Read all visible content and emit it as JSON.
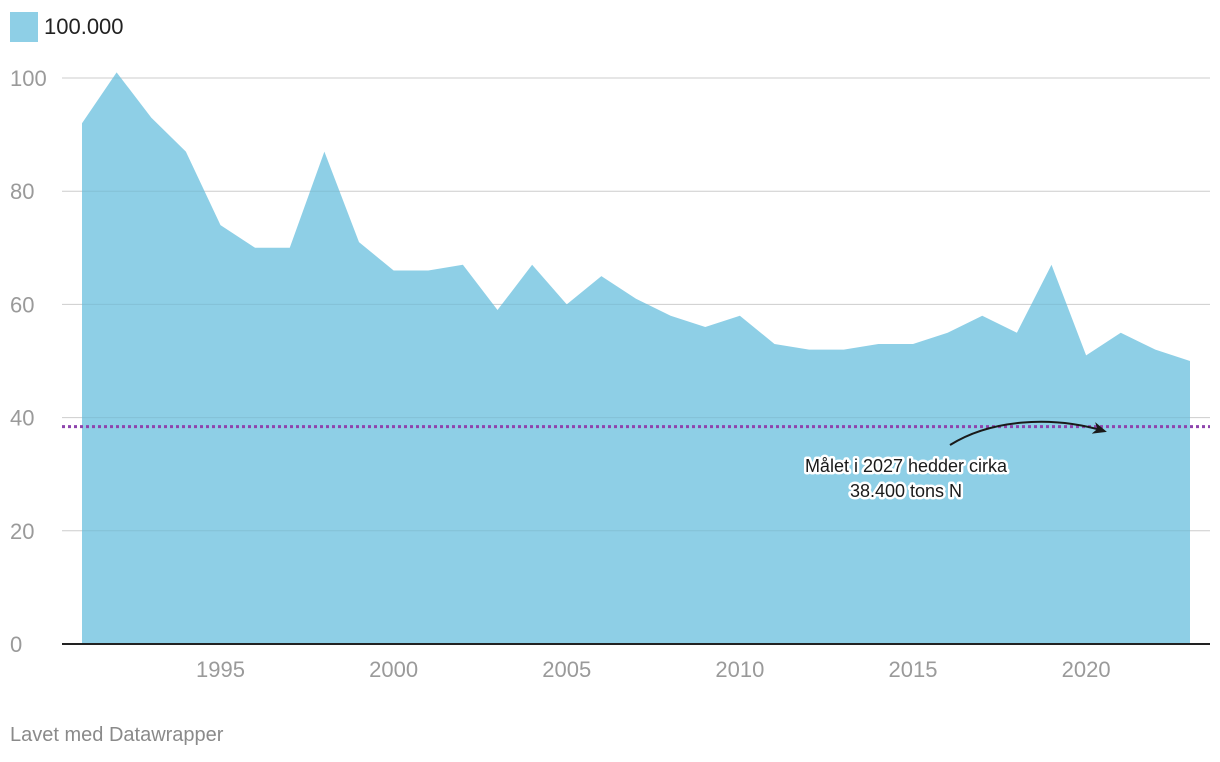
{
  "legend": {
    "label": "100.000",
    "color": "#8ecfe6"
  },
  "footer": "Lavet med Datawrapper",
  "colors": {
    "area": "#8ecfe6",
    "target_line": "#8e44ad",
    "grid": "#dddddd",
    "axis": "#222222",
    "tick_text": "#9a9a9a"
  },
  "chart_data": {
    "type": "area",
    "x": [
      1991,
      1992,
      1993,
      1994,
      1995,
      1996,
      1997,
      1998,
      1999,
      2000,
      2001,
      2002,
      2003,
      2004,
      2005,
      2006,
      2007,
      2008,
      2009,
      2010,
      2011,
      2012,
      2013,
      2014,
      2015,
      2016,
      2017,
      2018,
      2019,
      2020,
      2021,
      2022,
      2023
    ],
    "series": [
      {
        "name": "100.000",
        "values": [
          92,
          101,
          93,
          87,
          74,
          70,
          70,
          87,
          71,
          66,
          66,
          67,
          59,
          67,
          60,
          65,
          61,
          58,
          56,
          58,
          53,
          52,
          52,
          53,
          53,
          55,
          58,
          55,
          67,
          51,
          55,
          52,
          50
        ]
      }
    ],
    "ylim": [
      0,
      100
    ],
    "yticks": [
      0,
      20,
      40,
      60,
      80,
      100
    ],
    "xticks": [
      1995,
      2000,
      2005,
      2010,
      2015,
      2020
    ],
    "grid": true,
    "legend_position": "top-left",
    "target_line": {
      "value": 38.4,
      "style": "dotted"
    },
    "annotation": {
      "lines": [
        "Målet i 2027 hedder cirka",
        "38.400 tons N"
      ]
    }
  }
}
